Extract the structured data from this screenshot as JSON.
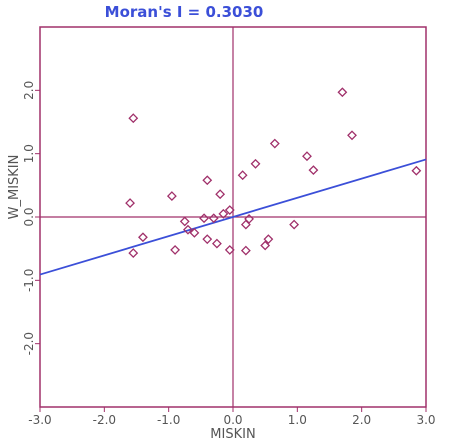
{
  "chart_data": {
    "type": "scatter",
    "title": "Moran's I = 0.3030",
    "xlabel": "MISKIN",
    "ylabel": "W_MISKIN",
    "xlim": [
      -3.0,
      3.0
    ],
    "ylim": [
      -3.0,
      3.0
    ],
    "x_tick_labels": [
      "-3.0",
      "-2.0",
      "-1.0",
      "0.0",
      "1.0",
      "2.0",
      "3.0"
    ],
    "y_tick_labels": [
      "-2.0",
      "-1.0",
      "0.0",
      "1.0",
      "2.0"
    ],
    "points": [
      {
        "x": -1.55,
        "y": 1.56
      },
      {
        "x": 1.7,
        "y": 1.97
      },
      {
        "x": 1.85,
        "y": 1.29
      },
      {
        "x": 0.65,
        "y": 1.16
      },
      {
        "x": 1.15,
        "y": 0.96
      },
      {
        "x": 0.35,
        "y": 0.84
      },
      {
        "x": 1.25,
        "y": 0.74
      },
      {
        "x": 2.85,
        "y": 0.73
      },
      {
        "x": 0.15,
        "y": 0.66
      },
      {
        "x": -0.4,
        "y": 0.58
      },
      {
        "x": -0.95,
        "y": 0.33
      },
      {
        "x": -0.2,
        "y": 0.36
      },
      {
        "x": -1.6,
        "y": 0.22
      },
      {
        "x": -0.05,
        "y": 0.11
      },
      {
        "x": -0.15,
        "y": 0.05
      },
      {
        "x": -0.3,
        "y": -0.02
      },
      {
        "x": -0.45,
        "y": -0.02
      },
      {
        "x": 0.25,
        "y": -0.03
      },
      {
        "x": -0.75,
        "y": -0.07
      },
      {
        "x": 0.2,
        "y": -0.12
      },
      {
        "x": 0.95,
        "y": -0.12
      },
      {
        "x": -0.7,
        "y": -0.2
      },
      {
        "x": -0.6,
        "y": -0.25
      },
      {
        "x": -1.4,
        "y": -0.32
      },
      {
        "x": -0.4,
        "y": -0.35
      },
      {
        "x": 0.55,
        "y": -0.35
      },
      {
        "x": -0.25,
        "y": -0.42
      },
      {
        "x": 0.5,
        "y": -0.45
      },
      {
        "x": -0.9,
        "y": -0.52
      },
      {
        "x": -0.05,
        "y": -0.52
      },
      {
        "x": 0.2,
        "y": -0.53
      },
      {
        "x": -1.55,
        "y": -0.57
      }
    ],
    "regression": {
      "slope": 0.303,
      "intercept": 0.0
    },
    "grid": false,
    "colors": {
      "frame": "#a0306a",
      "points": "#a0306a",
      "regression_line": "#3b4fd8",
      "title": "#3b4fd8",
      "labels": "#555555"
    }
  }
}
